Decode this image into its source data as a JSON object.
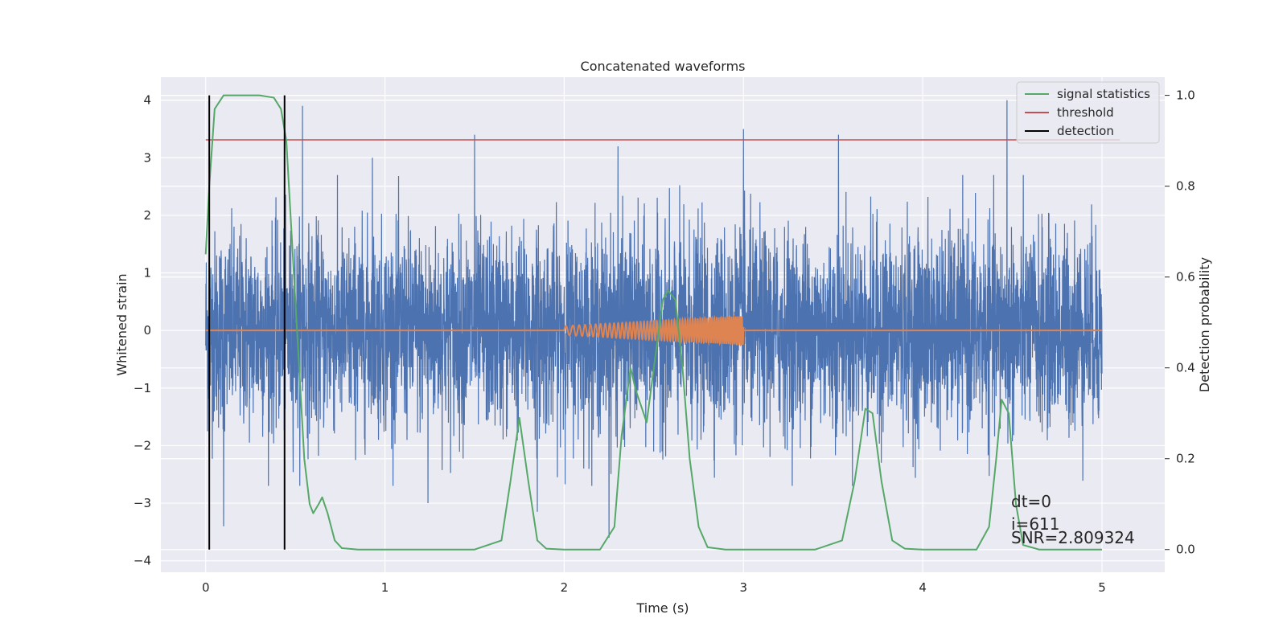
{
  "chart_data": {
    "type": "line",
    "title": "Concatenated waveforms",
    "xlabel": "Time (s)",
    "ylabel": "Whitened strain",
    "ylabel_right": "Detection probability",
    "xlim": [
      -0.25,
      5.35
    ],
    "ylim": [
      -4.2,
      4.4
    ],
    "ylim_right": [
      -0.05,
      1.04
    ],
    "x_ticks": [
      0,
      1,
      2,
      3,
      4,
      5
    ],
    "y_ticks": [
      -4,
      -3,
      -2,
      -1,
      0,
      1,
      2,
      3,
      4
    ],
    "y_ticks_right": [
      0.0,
      0.2,
      0.4,
      0.6,
      0.8,
      1.0
    ],
    "x_tick_labels": [
      "0",
      "1",
      "2",
      "3",
      "4",
      "5"
    ],
    "y_tick_labels": [
      "−4",
      "−3",
      "−2",
      "−1",
      "0",
      "1",
      "2",
      "3",
      "4"
    ],
    "y_tick_labels_right": [
      "0.0",
      "0.2",
      "0.4",
      "0.6",
      "0.8",
      "1.0"
    ],
    "grid": true,
    "background": "#eaeaf2",
    "legend_position": "top-right",
    "series": [
      {
        "name": "",
        "role": "whitened strain noise",
        "axis": "left",
        "color": "#4c72b0",
        "x_range": [
          0,
          5
        ],
        "amplitude_typical": 1.1,
        "peaks": [
          {
            "x": 0.54,
            "y": 3.9
          },
          {
            "x": 0.93,
            "y": 3.0
          },
          {
            "x": 1.5,
            "y": 3.4
          },
          {
            "x": 2.3,
            "y": 3.2
          },
          {
            "x": 3.0,
            "y": 3.5
          },
          {
            "x": 3.53,
            "y": 3.4
          },
          {
            "x": 4.47,
            "y": 4.0
          },
          {
            "x": 0.1,
            "y": -3.4
          },
          {
            "x": 1.24,
            "y": -3.0
          },
          {
            "x": 1.85,
            "y": -3.15
          },
          {
            "x": 2.25,
            "y": -3.6
          }
        ]
      },
      {
        "name": "",
        "role": "injected chirp waveform",
        "axis": "left",
        "color": "#dd8452",
        "chirp_start": 2.0,
        "chirp_end": 3.0,
        "chirp_amplitude_start": 0.08,
        "chirp_amplitude_end": 0.25,
        "chirp_freq_start": 24,
        "chirp_freq_end": 90
      },
      {
        "name": "signal statistics",
        "axis": "right",
        "color": "#55a868",
        "x": [
          0,
          0.02,
          0.05,
          0.1,
          0.2,
          0.3,
          0.38,
          0.42,
          0.45,
          0.5,
          0.55,
          0.58,
          0.6,
          0.63,
          0.65,
          0.68,
          0.72,
          0.76,
          0.85,
          1.5,
          1.65,
          1.7,
          1.75,
          1.8,
          1.85,
          1.9,
          2.0,
          2.2,
          2.28,
          2.32,
          2.37,
          2.4,
          2.46,
          2.5,
          2.55,
          2.58,
          2.62,
          2.66,
          2.7,
          2.75,
          2.8,
          2.9,
          3.4,
          3.55,
          3.62,
          3.68,
          3.72,
          3.77,
          3.83,
          3.9,
          4.0,
          4.3,
          4.37,
          4.41,
          4.44,
          4.48,
          4.52,
          4.56,
          4.65,
          5.0
        ],
        "values": [
          0.65,
          0.8,
          0.97,
          1.0,
          1.0,
          1.0,
          0.995,
          0.97,
          0.9,
          0.55,
          0.2,
          0.1,
          0.08,
          0.1,
          0.115,
          0.08,
          0.02,
          0.003,
          0.0,
          0.0,
          0.02,
          0.15,
          0.29,
          0.15,
          0.02,
          0.002,
          0.0,
          0.0,
          0.05,
          0.25,
          0.4,
          0.35,
          0.28,
          0.4,
          0.55,
          0.57,
          0.55,
          0.4,
          0.2,
          0.05,
          0.005,
          0.0,
          0.0,
          0.02,
          0.15,
          0.31,
          0.3,
          0.15,
          0.02,
          0.002,
          0.0,
          0.0,
          0.05,
          0.2,
          0.33,
          0.3,
          0.1,
          0.01,
          0.0,
          0.0
        ]
      },
      {
        "name": "threshold",
        "axis": "right",
        "color": "#c44e52",
        "x": [
          0,
          5.1
        ],
        "values": [
          0.902,
          0.902
        ]
      },
      {
        "name": "detection",
        "axis": "right",
        "color": "#000000",
        "vlines": [
          0.02,
          0.44
        ],
        "vline_range": [
          0.0,
          1.0
        ]
      }
    ],
    "annotations": [
      "dt=0",
      "i=611",
      "SNR=2.809324"
    ]
  }
}
